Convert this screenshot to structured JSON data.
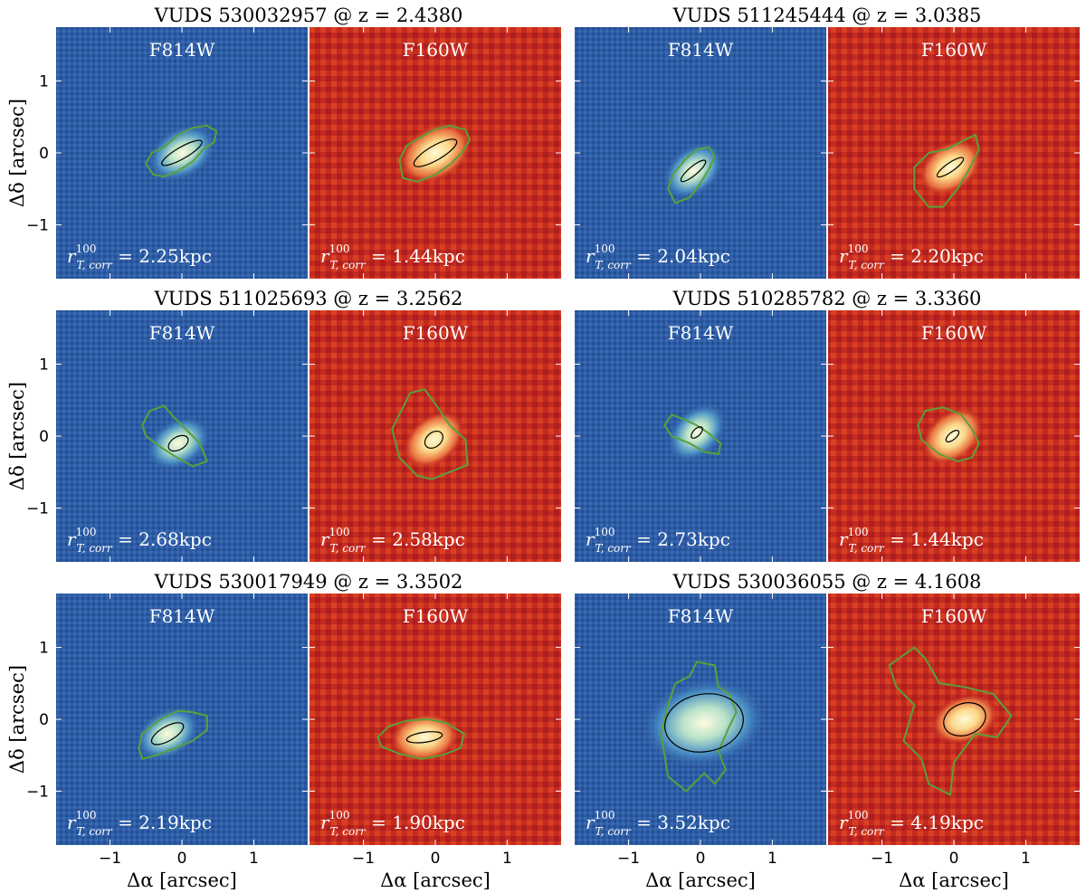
{
  "figure": {
    "panels": [
      {
        "title": "VUDS 530032957 @ z = 2.4380",
        "f814": {
          "filter": "F814W",
          "r_value": "2.25kpc",
          "ellipse": {
            "cx": 0.0,
            "cy": 0.0,
            "rx": 0.32,
            "ry": 0.08,
            "angle": -30
          },
          "contour": [
            [
              -0.4,
              -0.3
            ],
            [
              -0.5,
              -0.15
            ],
            [
              -0.42,
              0.0
            ],
            [
              -0.25,
              0.08
            ],
            [
              -0.05,
              0.25
            ],
            [
              0.15,
              0.35
            ],
            [
              0.35,
              0.38
            ],
            [
              0.48,
              0.3
            ],
            [
              0.45,
              0.15
            ],
            [
              0.3,
              0.05
            ],
            [
              0.15,
              -0.12
            ],
            [
              -0.05,
              -0.25
            ],
            [
              -0.25,
              -0.33
            ]
          ]
        },
        "f160": {
          "filter": "F160W",
          "r_value": "1.44kpc",
          "ellipse": {
            "cx": 0.0,
            "cy": 0.0,
            "rx": 0.34,
            "ry": 0.1,
            "angle": -30
          },
          "contour": [
            [
              -0.45,
              -0.35
            ],
            [
              -0.5,
              -0.1
            ],
            [
              -0.4,
              0.1
            ],
            [
              -0.2,
              0.22
            ],
            [
              0.0,
              0.33
            ],
            [
              0.2,
              0.38
            ],
            [
              0.42,
              0.32
            ],
            [
              0.48,
              0.18
            ],
            [
              0.38,
              0.02
            ],
            [
              0.22,
              -0.15
            ],
            [
              0.0,
              -0.3
            ],
            [
              -0.25,
              -0.4
            ]
          ]
        }
      },
      {
        "title": "VUDS 511245444 @ z = 3.0385",
        "f814": {
          "filter": "F814W",
          "r_value": "2.04kpc",
          "ellipse": {
            "cx": -0.1,
            "cy": -0.25,
            "rx": 0.22,
            "ry": 0.06,
            "angle": -40
          },
          "contour": [
            [
              -0.35,
              -0.7
            ],
            [
              -0.45,
              -0.5
            ],
            [
              -0.38,
              -0.3
            ],
            [
              -0.22,
              -0.1
            ],
            [
              -0.05,
              0.05
            ],
            [
              0.12,
              0.08
            ],
            [
              0.2,
              -0.05
            ],
            [
              0.12,
              -0.22
            ],
            [
              0.0,
              -0.42
            ],
            [
              -0.15,
              -0.62
            ]
          ]
        },
        "f160": {
          "filter": "F160W",
          "r_value": "2.20kpc",
          "ellipse": {
            "cx": -0.05,
            "cy": -0.2,
            "rx": 0.22,
            "ry": 0.06,
            "angle": -35
          },
          "contour": [
            [
              -0.35,
              -0.75
            ],
            [
              -0.55,
              -0.5
            ],
            [
              -0.55,
              -0.2
            ],
            [
              -0.35,
              0.0
            ],
            [
              -0.1,
              0.05
            ],
            [
              0.15,
              0.18
            ],
            [
              0.3,
              0.25
            ],
            [
              0.35,
              0.05
            ],
            [
              0.2,
              -0.25
            ],
            [
              0.05,
              -0.5
            ],
            [
              -0.15,
              -0.75
            ]
          ]
        }
      },
      {
        "title": "VUDS 511025693 @ z = 3.2562",
        "f814": {
          "filter": "F814W",
          "r_value": "2.68kpc",
          "ellipse": {
            "cx": -0.05,
            "cy": -0.1,
            "rx": 0.15,
            "ry": 0.09,
            "angle": -30
          },
          "contour": [
            [
              -0.55,
              0.15
            ],
            [
              -0.45,
              0.35
            ],
            [
              -0.25,
              0.42
            ],
            [
              -0.1,
              0.25
            ],
            [
              0.1,
              0.05
            ],
            [
              0.25,
              -0.1
            ],
            [
              0.35,
              -0.35
            ],
            [
              0.15,
              -0.42
            ],
            [
              -0.1,
              -0.28
            ],
            [
              -0.3,
              -0.15
            ],
            [
              -0.5,
              0.0
            ]
          ]
        },
        "f160": {
          "filter": "F160W",
          "r_value": "2.58kpc",
          "ellipse": {
            "cx": -0.02,
            "cy": -0.05,
            "rx": 0.14,
            "ry": 0.1,
            "angle": -40
          },
          "contour": [
            [
              -0.6,
              0.1
            ],
            [
              -0.45,
              0.4
            ],
            [
              -0.35,
              0.6
            ],
            [
              -0.15,
              0.65
            ],
            [
              0.0,
              0.45
            ],
            [
              0.2,
              0.15
            ],
            [
              0.42,
              -0.05
            ],
            [
              0.45,
              -0.4
            ],
            [
              0.2,
              -0.5
            ],
            [
              -0.05,
              -0.6
            ],
            [
              -0.25,
              -0.55
            ],
            [
              -0.5,
              -0.3
            ]
          ]
        }
      },
      {
        "title": "VUDS 510285782 @ z = 3.3360",
        "f814": {
          "filter": "F814W",
          "r_value": "2.73kpc",
          "ellipse": {
            "cx": -0.05,
            "cy": 0.05,
            "rx": 0.1,
            "ry": 0.05,
            "angle": -45
          },
          "contour": [
            [
              -0.5,
              0.15
            ],
            [
              -0.4,
              0.3
            ],
            [
              -0.2,
              0.22
            ],
            [
              -0.05,
              0.15
            ],
            [
              0.1,
              0.05
            ],
            [
              0.28,
              -0.1
            ],
            [
              0.25,
              -0.25
            ],
            [
              0.05,
              -0.22
            ],
            [
              -0.15,
              -0.1
            ],
            [
              -0.4,
              0.0
            ]
          ]
        },
        "f160": {
          "filter": "F160W",
          "r_value": "1.44kpc",
          "ellipse": {
            "cx": -0.02,
            "cy": 0.0,
            "rx": 0.11,
            "ry": 0.05,
            "angle": -40
          },
          "contour": [
            [
              -0.5,
              0.15
            ],
            [
              -0.4,
              0.35
            ],
            [
              -0.15,
              0.4
            ],
            [
              0.1,
              0.3
            ],
            [
              0.25,
              0.1
            ],
            [
              0.35,
              -0.1
            ],
            [
              0.25,
              -0.3
            ],
            [
              0.05,
              -0.35
            ],
            [
              -0.2,
              -0.25
            ],
            [
              -0.45,
              -0.05
            ]
          ]
        }
      },
      {
        "title": "VUDS 530017949 @ z = 3.3502",
        "f814": {
          "filter": "F814W",
          "r_value": "2.19kpc",
          "ellipse": {
            "cx": -0.2,
            "cy": -0.2,
            "rx": 0.25,
            "ry": 0.1,
            "angle": -30
          },
          "contour": [
            [
              -0.6,
              -0.4
            ],
            [
              -0.55,
              -0.2
            ],
            [
              -0.3,
              0.0
            ],
            [
              -0.05,
              0.12
            ],
            [
              0.15,
              0.1
            ],
            [
              0.35,
              0.05
            ],
            [
              0.35,
              -0.15
            ],
            [
              0.15,
              -0.3
            ],
            [
              -0.1,
              -0.4
            ],
            [
              -0.35,
              -0.5
            ],
            [
              -0.55,
              -0.55
            ]
          ]
        },
        "f160": {
          "filter": "F160W",
          "r_value": "1.90kpc",
          "ellipse": {
            "cx": -0.15,
            "cy": -0.25,
            "rx": 0.25,
            "ry": 0.07,
            "angle": -8
          },
          "contour": [
            [
              -0.8,
              -0.25
            ],
            [
              -0.65,
              -0.1
            ],
            [
              -0.4,
              -0.02
            ],
            [
              -0.1,
              0.0
            ],
            [
              0.15,
              -0.05
            ],
            [
              0.4,
              -0.2
            ],
            [
              0.35,
              -0.4
            ],
            [
              0.1,
              -0.5
            ],
            [
              -0.2,
              -0.55
            ],
            [
              -0.5,
              -0.48
            ],
            [
              -0.75,
              -0.38
            ]
          ]
        }
      },
      {
        "title": "VUDS 530036055 @ z = 4.1608",
        "f814": {
          "filter": "F814W",
          "r_value": "3.52kpc",
          "ellipse": {
            "cx": 0.05,
            "cy": -0.05,
            "rx": 0.55,
            "ry": 0.4,
            "angle": -10
          },
          "contour": [
            [
              -0.45,
              0.2
            ],
            [
              -0.35,
              0.5
            ],
            [
              -0.15,
              0.6
            ],
            [
              -0.05,
              0.8
            ],
            [
              0.2,
              0.75
            ],
            [
              0.25,
              0.45
            ],
            [
              0.4,
              0.35
            ],
            [
              0.5,
              0.1
            ],
            [
              0.4,
              -0.1
            ],
            [
              0.25,
              -0.45
            ],
            [
              0.35,
              -0.7
            ],
            [
              0.2,
              -0.9
            ],
            [
              0.05,
              -0.75
            ],
            [
              -0.2,
              -1.0
            ],
            [
              -0.45,
              -0.8
            ],
            [
              -0.5,
              -0.5
            ],
            [
              -0.55,
              -0.2
            ]
          ]
        },
        "f160": {
          "filter": "F160W",
          "r_value": "4.19kpc",
          "ellipse": {
            "cx": 0.15,
            "cy": 0.0,
            "rx": 0.3,
            "ry": 0.22,
            "angle": -20
          },
          "contour": [
            [
              -0.9,
              0.75
            ],
            [
              -0.55,
              1.0
            ],
            [
              -0.4,
              0.85
            ],
            [
              -0.2,
              0.5
            ],
            [
              0.15,
              0.45
            ],
            [
              0.55,
              0.35
            ],
            [
              0.8,
              0.05
            ],
            [
              0.6,
              -0.25
            ],
            [
              0.3,
              -0.2
            ],
            [
              0.0,
              -0.6
            ],
            [
              -0.05,
              -1.05
            ],
            [
              -0.35,
              -0.9
            ],
            [
              -0.45,
              -0.55
            ],
            [
              -0.7,
              -0.3
            ],
            [
              -0.55,
              0.2
            ],
            [
              -0.8,
              0.45
            ]
          ]
        }
      }
    ],
    "r_symbol": "r",
    "r_sup": "100",
    "r_sub": "T, corr",
    "r_eq": " = ",
    "y_label": "Δδ [arcsec]",
    "x_label": "Δα [arcsec]",
    "ticks": [
      "−1",
      "0",
      "1"
    ],
    "tick_values": [
      -1,
      0,
      1
    ],
    "axis_range": [
      -1.75,
      1.75
    ],
    "colors": {
      "blue_map": "#2f5fa6",
      "red_map": "#c0271e",
      "contour": "#5aa03a",
      "ellipse": "#000000"
    }
  }
}
